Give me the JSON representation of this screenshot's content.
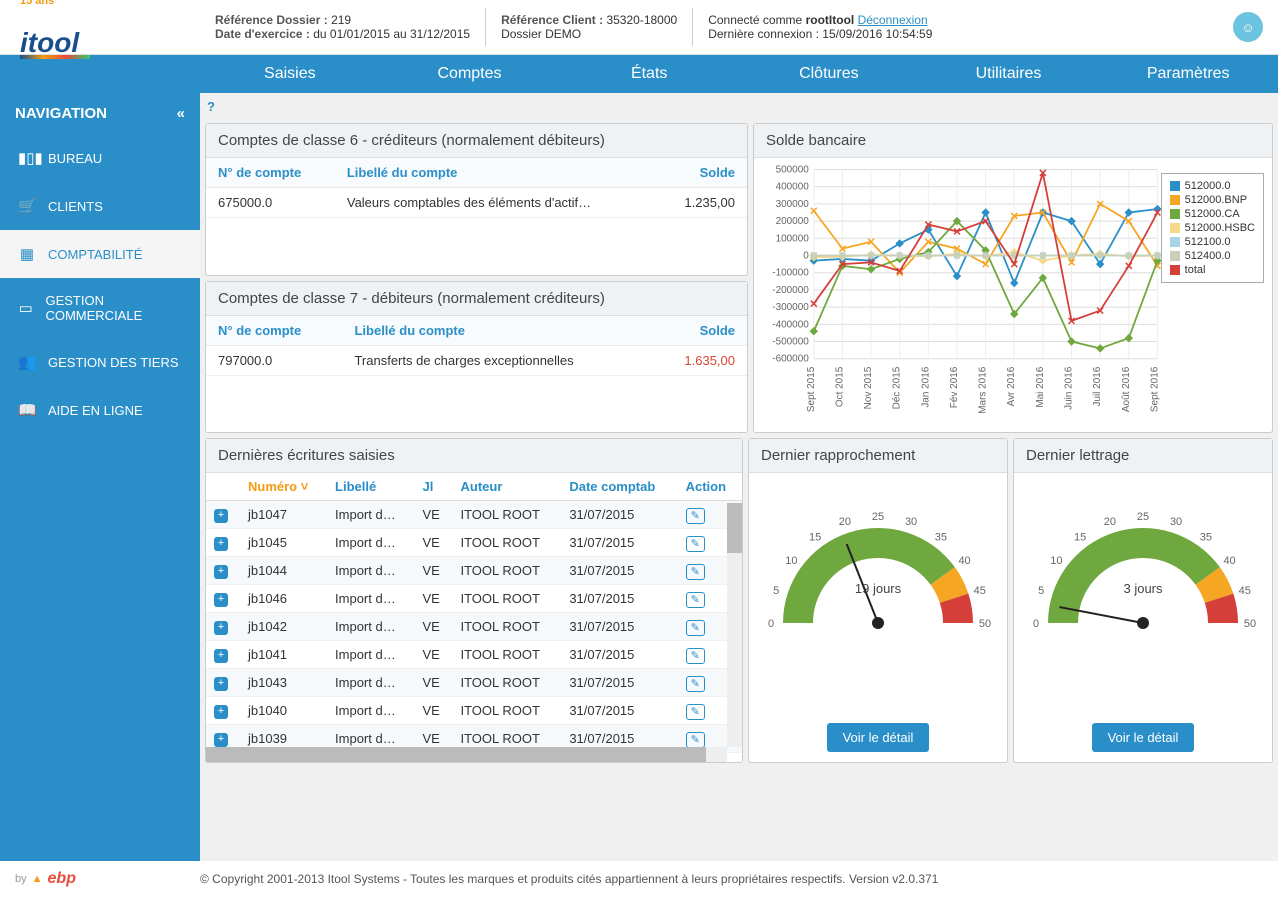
{
  "header": {
    "logo_main": "itoo",
    "logo_tag": "15 ans",
    "ref_dossier_lbl": "Référence Dossier :",
    "ref_dossier_val": "219",
    "date_ex_lbl": "Date d'exercice :",
    "date_ex_val": "du 01/01/2015 au 31/12/2015",
    "ref_client_lbl": "Référence Client :",
    "ref_client_val": "35320-18000",
    "dossier": "Dossier DEMO",
    "connected_lbl": "Connecté comme",
    "user": "rootItool",
    "logout": "Déconnexion",
    "last_login_lbl": "Dernière connexion :",
    "last_login_val": "15/09/2016 10:54:59"
  },
  "menu": [
    "Saisies",
    "Comptes",
    "États",
    "Clôtures",
    "Utilitaires",
    "Paramètres"
  ],
  "sidebar": {
    "title": "NAVIGATION",
    "items": [
      {
        "icon": "bar",
        "label": "BUREAU"
      },
      {
        "icon": "cart",
        "label": "CLIENTS"
      },
      {
        "icon": "grid",
        "label": "COMPTABILITÉ"
      },
      {
        "icon": "card",
        "label": "GESTION COMMERCIALE"
      },
      {
        "icon": "users",
        "label": "GESTION DES TIERS"
      },
      {
        "icon": "book",
        "label": "AIDE EN LIGNE"
      }
    ],
    "active": 2
  },
  "accounts6": {
    "title": "Comptes de classe 6 - créditeurs (normalement débiteurs)",
    "cols": [
      "N° de compte",
      "Libellé du compte",
      "Solde"
    ],
    "rows": [
      [
        "675000.0",
        "Valeurs comptables des éléments d'actif…",
        "1.235,00"
      ]
    ]
  },
  "accounts7": {
    "title": "Comptes de classe 7 - débiteurs (normalement créditeurs)",
    "cols": [
      "N° de compte",
      "Libellé du compte",
      "Solde"
    ],
    "rows": [
      [
        "797000.0",
        "Transferts de charges exceptionnelles",
        "1.635,00"
      ]
    ],
    "negative": [
      true
    ]
  },
  "chart": {
    "title": "Solde bancaire",
    "ymin": -600000,
    "ymax": 500000,
    "ystep": 100000,
    "xlabels": [
      "Sept 2015",
      "Oct 2015",
      "Nov 2015",
      "Déc 2015",
      "Jan 2016",
      "Fév 2016",
      "Mars 2016",
      "Avr 2016",
      "Mai 2016",
      "Juin 2016",
      "Juil 2016",
      "Août 2016",
      "Sept 2016"
    ],
    "series": [
      {
        "name": "512000.0",
        "color": "#2a8fc8",
        "marker": "diamond",
        "data": [
          -30000,
          -20000,
          -30000,
          70000,
          150000,
          -120000,
          250000,
          -160000,
          250000,
          200000,
          -50000,
          250000,
          270000
        ]
      },
      {
        "name": "512000.BNP",
        "color": "#f5a623",
        "marker": "x",
        "data": [
          260000,
          40000,
          80000,
          -100000,
          80000,
          40000,
          -50000,
          230000,
          250000,
          -40000,
          300000,
          200000,
          -60000
        ]
      },
      {
        "name": "512000.CA",
        "color": "#6fa83e",
        "marker": "diamond",
        "data": [
          -440000,
          -60000,
          -80000,
          -20000,
          20000,
          200000,
          30000,
          -340000,
          -130000,
          -500000,
          -540000,
          -480000,
          -30000
        ]
      },
      {
        "name": "512000.HSBC",
        "color": "#f7d98a",
        "marker": "diamond",
        "data": [
          -10000,
          -8000,
          5000,
          0,
          -5000,
          10000,
          -5000,
          20000,
          -30000,
          0,
          10000,
          -5000,
          0
        ]
      },
      {
        "name": "512100.0",
        "color": "#a8d4e8",
        "marker": "x",
        "data": [
          0,
          0,
          0,
          0,
          0,
          0,
          0,
          0,
          0,
          0,
          0,
          0,
          0
        ]
      },
      {
        "name": "512400.0",
        "color": "#c8d0b8",
        "marker": "diamond",
        "data": [
          0,
          0,
          0,
          0,
          0,
          0,
          0,
          0,
          0,
          0,
          0,
          0,
          0
        ]
      },
      {
        "name": "total",
        "color": "#d43f3a",
        "marker": "x",
        "data": [
          -280000,
          -50000,
          -40000,
          -90000,
          180000,
          140000,
          200000,
          -50000,
          480000,
          -380000,
          -320000,
          -60000,
          250000
        ]
      }
    ]
  },
  "entries": {
    "title": "Dernières écritures saisies",
    "cols": [
      "Numéro",
      "Libellé",
      "Jl",
      "Auteur",
      "Date comptab",
      "Action"
    ],
    "sorted_col": 0,
    "rows": [
      [
        "jb1047",
        "Import d…",
        "VE",
        "ITOOL ROOT",
        "31/07/2015"
      ],
      [
        "jb1045",
        "Import d…",
        "VE",
        "ITOOL ROOT",
        "31/07/2015"
      ],
      [
        "jb1044",
        "Import d…",
        "VE",
        "ITOOL ROOT",
        "31/07/2015"
      ],
      [
        "jb1046",
        "Import d…",
        "VE",
        "ITOOL ROOT",
        "31/07/2015"
      ],
      [
        "jb1042",
        "Import d…",
        "VE",
        "ITOOL ROOT",
        "31/07/2015"
      ],
      [
        "jb1041",
        "Import d…",
        "VE",
        "ITOOL ROOT",
        "31/07/2015"
      ],
      [
        "jb1043",
        "Import d…",
        "VE",
        "ITOOL ROOT",
        "31/07/2015"
      ],
      [
        "jb1040",
        "Import d…",
        "VE",
        "ITOOL ROOT",
        "31/07/2015"
      ],
      [
        "jb1039",
        "Import d…",
        "VE",
        "ITOOL ROOT",
        "31/07/2015"
      ]
    ]
  },
  "gauge1": {
    "title": "Dernier rapprochement",
    "value": 19,
    "unit": "jours",
    "max": 50,
    "btn": "Voir le détail",
    "ticks": [
      0,
      5,
      10,
      15,
      20,
      25,
      30,
      35,
      40,
      45,
      50
    ],
    "segments": [
      {
        "from": 0,
        "to": 40,
        "color": "#6fa83e"
      },
      {
        "from": 40,
        "to": 45,
        "color": "#f5a623"
      },
      {
        "from": 45,
        "to": 50,
        "color": "#d43f3a"
      }
    ]
  },
  "gauge2": {
    "title": "Dernier lettrage",
    "value": 3,
    "unit": "jours",
    "max": 50,
    "btn": "Voir le détail",
    "ticks": [
      0,
      5,
      10,
      15,
      20,
      25,
      30,
      35,
      40,
      45,
      50
    ],
    "segments": [
      {
        "from": 0,
        "to": 40,
        "color": "#6fa83e"
      },
      {
        "from": 40,
        "to": 45,
        "color": "#f5a623"
      },
      {
        "from": 45,
        "to": 50,
        "color": "#d43f3a"
      }
    ]
  },
  "footer": {
    "by": "by",
    "ebp": "ebp",
    "copy": "© Copyright 2001-2013 Itool Systems - Toutes les marques et produits cités appartiennent à leurs propriétaires respectifs. Version v2.0.371"
  }
}
